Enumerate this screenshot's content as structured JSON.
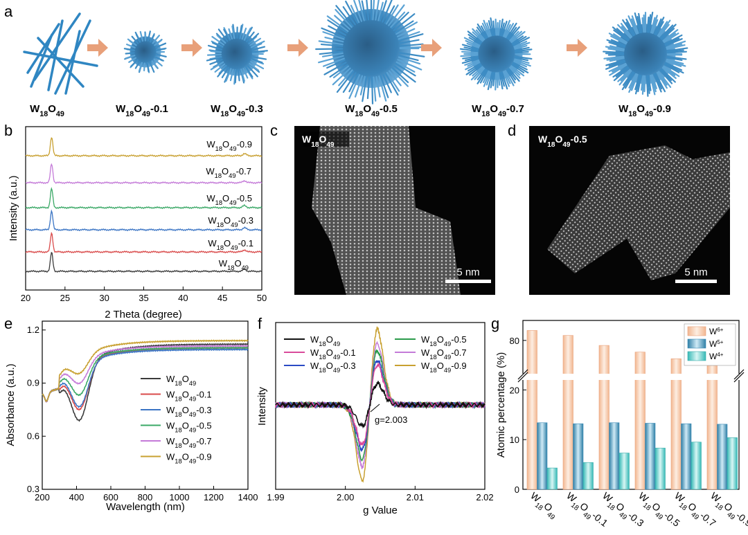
{
  "panel_letters": [
    "a",
    "b",
    "c",
    "d",
    "e",
    "f",
    "g"
  ],
  "panel_a": {
    "labels": [
      "W18O49",
      "W18O49-0.1",
      "W18O49-0.3",
      "W18O49-0.5",
      "W18O49-0.7",
      "W18O49-0.9"
    ]
  },
  "panel_c": {
    "label": "W18O49",
    "scalebar": "5 nm"
  },
  "panel_d": {
    "label": "W18O49-0.5",
    "scalebar": "5 nm"
  },
  "colors": {
    "black": "#3a3a3a",
    "red": "#d94a4a",
    "blue": "#3a74c4",
    "green": "#3aa866",
    "purple": "#c47ad8",
    "gold": "#c8a030",
    "accent": "#e8a07a"
  },
  "chart_data": [
    {
      "id": "b",
      "type": "line",
      "xlabel": "2 Theta (degree)",
      "ylabel": "Intensity (a.u.)",
      "xlim": [
        20,
        50
      ],
      "xticks": [
        20,
        25,
        30,
        35,
        40,
        45,
        50
      ],
      "peaks": [
        23.3,
        47.8
      ],
      "series": [
        {
          "name": "W18O49",
          "color": "#3a3a3a"
        },
        {
          "name": "W18O49-0.1",
          "color": "#d94a4a"
        },
        {
          "name": "W18O49-0.3",
          "color": "#3a74c4"
        },
        {
          "name": "W18O49-0.5",
          "color": "#3aa866"
        },
        {
          "name": "W18O49-0.7",
          "color": "#c47ad8"
        },
        {
          "name": "W18O49-0.9",
          "color": "#c8a030"
        }
      ]
    },
    {
      "id": "e",
      "type": "line",
      "xlabel": "Wavelength (nm)",
      "ylabel": "Absorbance (a.u.)",
      "xlim": [
        200,
        1400
      ],
      "ylim": [
        0.3,
        1.25
      ],
      "xticks": [
        200,
        400,
        600,
        800,
        1000,
        1200,
        1400
      ],
      "yticks": [
        0.3,
        0.6,
        0.9,
        1.2
      ],
      "series": [
        {
          "name": "W18O49",
          "color": "#3a3a3a",
          "min": 0.57,
          "x_min": 420,
          "end": 1.12
        },
        {
          "name": "W18O49-0.1",
          "color": "#d94a4a",
          "min": 0.65,
          "x_min": 420,
          "end": 1.1
        },
        {
          "name": "W18O49-0.3",
          "color": "#3a74c4",
          "min": 0.68,
          "x_min": 420,
          "end": 1.09
        },
        {
          "name": "W18O49-0.5",
          "color": "#3aa866",
          "min": 0.75,
          "x_min": 420,
          "end": 1.1
        },
        {
          "name": "W18O49-0.7",
          "color": "#c47ad8",
          "min": 0.82,
          "x_min": 420,
          "end": 1.11
        },
        {
          "name": "W18O49-0.9",
          "color": "#c8a030",
          "min": 0.87,
          "x_min": 420,
          "end": 1.14
        }
      ]
    },
    {
      "id": "f",
      "type": "line",
      "xlabel": "g Value",
      "ylabel": "Intensity",
      "xlim": [
        1.99,
        2.02
      ],
      "xticks": [
        1.99,
        2.0,
        2.01,
        2.02
      ],
      "annotation": "g=2.003",
      "series": [
        {
          "name": "W18O49",
          "color": "#111111",
          "amp": 0.45
        },
        {
          "name": "W18O49-0.1",
          "color": "#d94a9a",
          "amp": 0.85
        },
        {
          "name": "W18O49-0.3",
          "color": "#2a4ac4",
          "amp": 0.95
        },
        {
          "name": "W18O49-0.5",
          "color": "#2a9a4a",
          "amp": 1.15
        },
        {
          "name": "W18O49-0.7",
          "color": "#c47ad8",
          "amp": 1.3
        },
        {
          "name": "W18O49-0.9",
          "color": "#c8a030",
          "amp": 1.6
        }
      ]
    },
    {
      "id": "g",
      "type": "bar",
      "ylabel": "Atomic percentage (%)",
      "yticks_lower": [
        0,
        10,
        20
      ],
      "yticks_upper": [
        80
      ],
      "categories": [
        "W18O49",
        "W18O49-0.1",
        "W18O49-0.3",
        "W18O49-0.5",
        "W18O49-0.7",
        "W18O49-0.9"
      ],
      "series": [
        {
          "name": "W6+",
          "values": [
            83.0,
            81.5,
            78.5,
            76.5,
            74.5,
            72.5
          ]
        },
        {
          "name": "W5+",
          "values": [
            13.4,
            13.2,
            13.4,
            13.3,
            13.2,
            13.1
          ]
        },
        {
          "name": "W4+",
          "values": [
            4.3,
            5.4,
            7.3,
            8.3,
            9.5,
            10.4
          ]
        }
      ]
    }
  ]
}
